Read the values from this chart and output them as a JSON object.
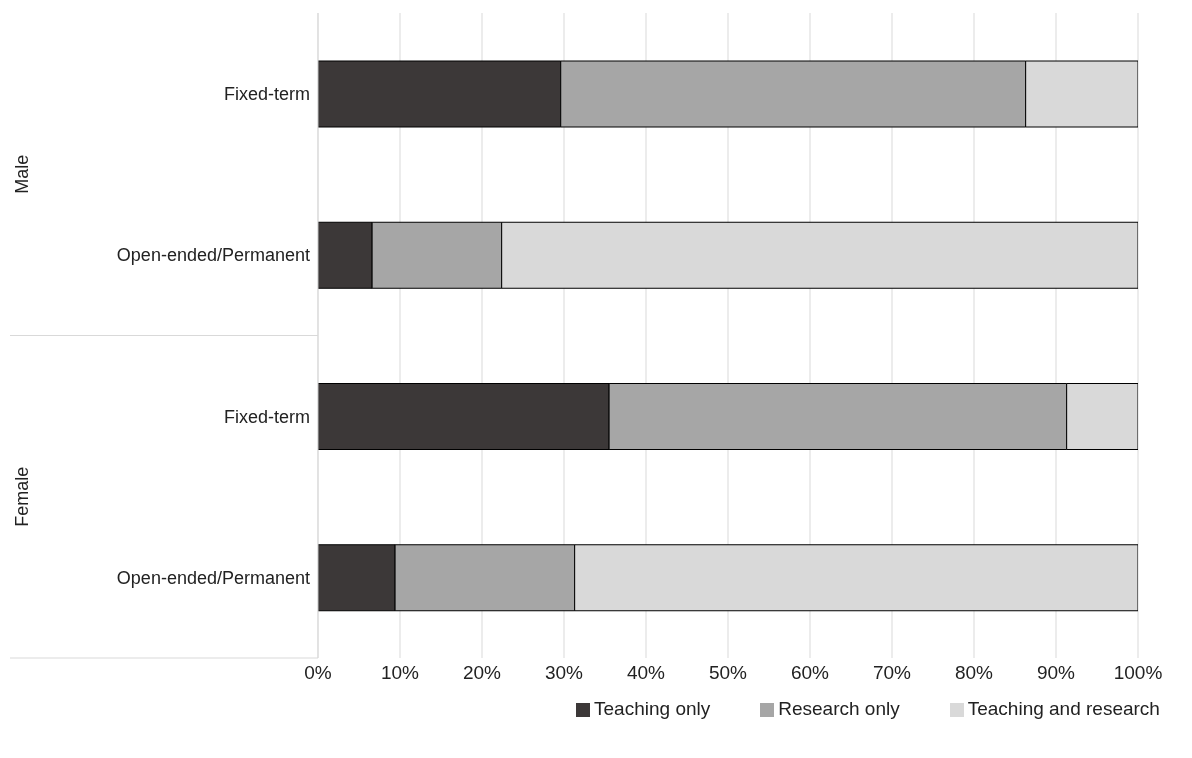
{
  "chart_data": {
    "type": "bar",
    "orientation": "horizontal",
    "stacked": true,
    "categories": [
      "Fixed-term",
      "Open-ended/Permanent",
      "Fixed-term",
      "Open-ended/Permanent"
    ],
    "series": [
      {
        "name": "Teaching only",
        "color": "#3c3838",
        "values": [
          29.6,
          6.6,
          35.5,
          9.4
        ]
      },
      {
        "name": "Research only",
        "color": "#a6a6a6",
        "values": [
          56.7,
          15.8,
          55.8,
          21.9
        ]
      },
      {
        "name": "Teaching and research",
        "color": "#d9d9d9",
        "values": [
          13.7,
          77.6,
          8.7,
          68.7
        ]
      }
    ],
    "annotations": [
      "Male",
      "Female"
    ],
    "xlim": [
      0,
      100
    ],
    "xticks": [
      {
        "value": 0,
        "label": "0%"
      },
      {
        "value": 10,
        "label": "10%"
      },
      {
        "value": 20,
        "label": "20%"
      },
      {
        "value": 30,
        "label": "30%"
      },
      {
        "value": 40,
        "label": "40%"
      },
      {
        "value": 50,
        "label": "50%"
      },
      {
        "value": 60,
        "label": "60%"
      },
      {
        "value": 70,
        "label": "70%"
      },
      {
        "value": 80,
        "label": "80%"
      },
      {
        "value": 90,
        "label": "90%"
      },
      {
        "value": 100,
        "label": "100%"
      }
    ],
    "grid": "x",
    "legend": "bottom"
  }
}
